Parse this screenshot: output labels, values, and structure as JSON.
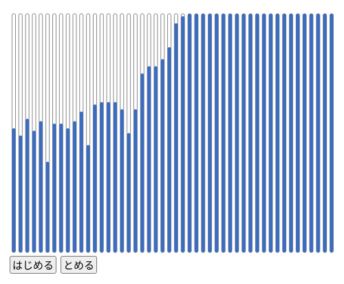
{
  "meters": {
    "values": [
      52,
      49,
      56,
      51,
      55,
      38,
      54,
      54,
      52,
      55,
      59,
      45,
      62,
      63,
      63,
      63,
      60,
      50,
      60,
      75,
      78,
      78,
      81,
      86,
      96,
      99,
      100,
      100,
      100,
      100,
      100,
      100,
      100,
      100,
      100,
      100,
      100,
      100,
      100,
      100,
      100,
      100,
      100,
      100,
      100,
      100,
      100,
      100
    ],
    "color": "#3b6cbf"
  },
  "buttons": {
    "start": "はじめる",
    "stop": "とめる"
  }
}
